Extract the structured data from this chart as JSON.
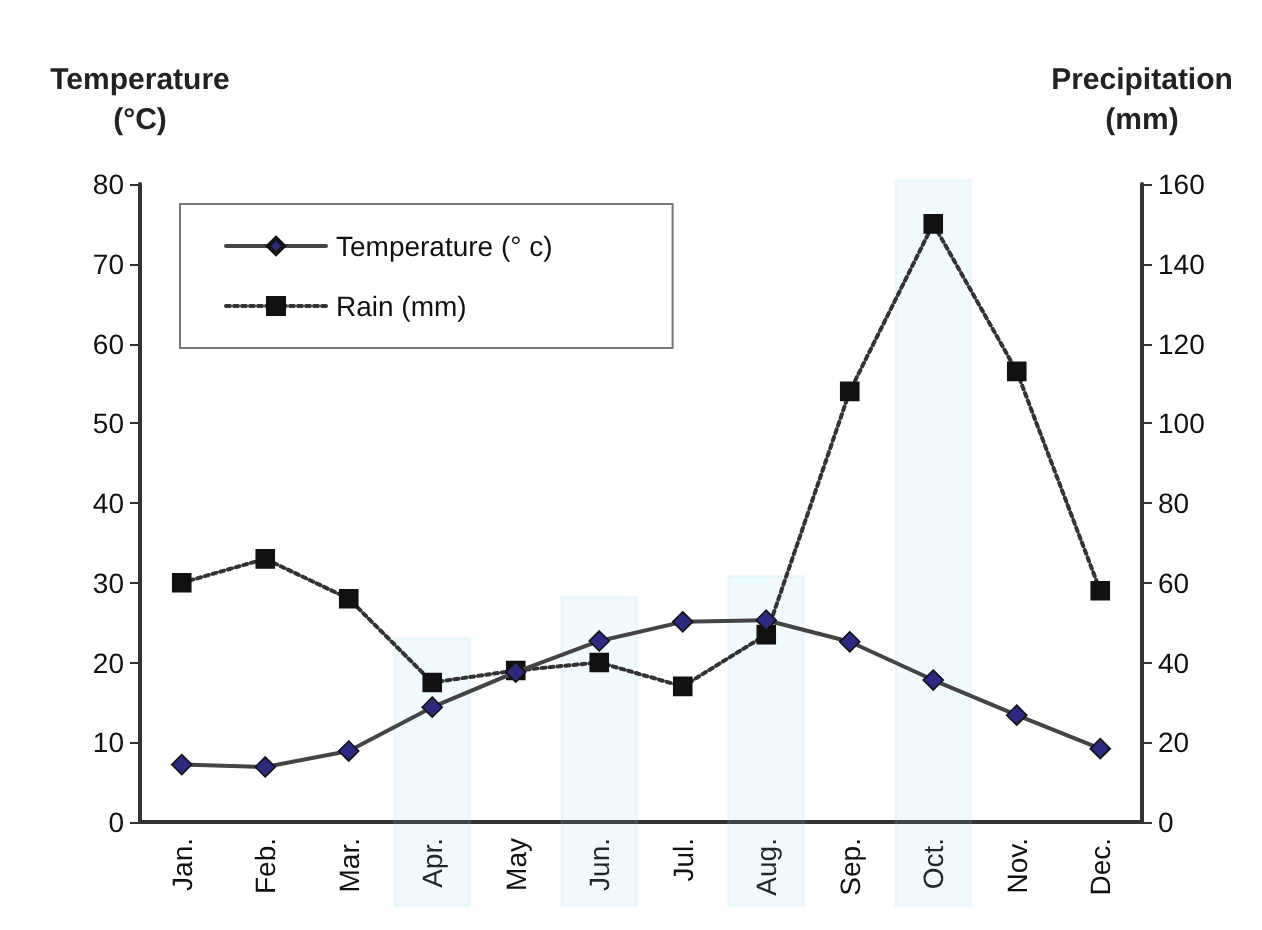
{
  "chart_data": {
    "type": "line",
    "ylabel": "Temperature\n(°C)",
    "y2label": "Precipitation\n(mm)",
    "categories": [
      "Jan.",
      "Feb.",
      "Mar.",
      "Apr.",
      "May",
      "Jun.",
      "Jul.",
      "Aug.",
      "Sep.",
      "Oct.",
      "Nov.",
      "Dec."
    ],
    "series": [
      {
        "name": "Temperature (° c)",
        "color": "#2b2a80",
        "marker": "diamond",
        "line_style": "solid",
        "values": [
          7.2,
          6.9,
          8.9,
          14.4,
          18.8,
          22.7,
          25.1,
          25.3,
          22.6,
          17.8,
          13.4,
          9.2
        ]
      },
      {
        "name": "Rain (mm)",
        "color": "#111111",
        "marker": "square",
        "line_style": "dotted",
        "axis": "y2",
        "values": [
          60,
          66,
          56,
          35,
          38,
          40,
          34,
          47,
          108,
          150,
          113,
          58
        ]
      }
    ],
    "ylim": [
      0,
      80
    ],
    "yticks": [
      0,
      10,
      20,
      30,
      40,
      50,
      60,
      70,
      80
    ],
    "y2lim": [
      0,
      160
    ],
    "y2ticks": [
      0,
      20,
      40,
      60,
      80,
      100,
      120,
      140,
      160
    ],
    "bands": [
      {
        "axis": "x",
        "from": "Apr.",
        "to": "Apr.",
        "color": "#8fd8ec"
      },
      {
        "axis": "x",
        "from": "Jun.",
        "to": "Jun.",
        "color": "#8fd8ec"
      },
      {
        "axis": "x",
        "from": "Aug.",
        "to": "Aug.",
        "color": "#8fd8ec"
      },
      {
        "axis": "x",
        "from": "Oct.",
        "to": "Oct.",
        "color": "#8fd8ec"
      }
    ],
    "grid": false,
    "legend": "top left"
  }
}
